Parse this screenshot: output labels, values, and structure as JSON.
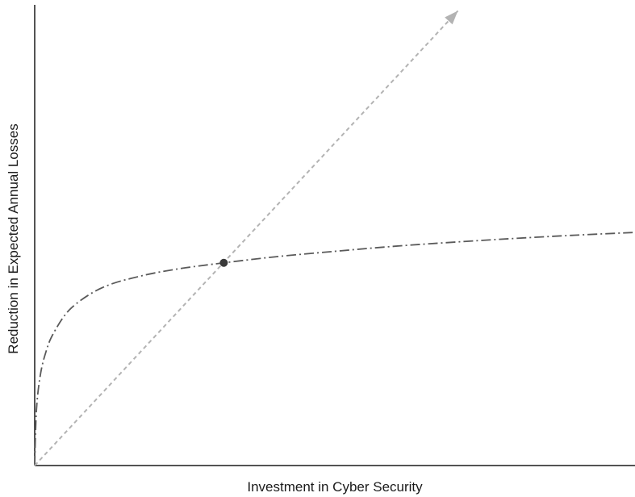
{
  "chart_data": {
    "type": "line",
    "title": "",
    "xlabel": "Investment in Cyber Security",
    "ylabel": "Reduction in Expected Annual Losses",
    "xlim": [
      0,
      100
    ],
    "ylim": [
      0,
      100
    ],
    "ticks_shown": false,
    "grid": false,
    "legend": "none",
    "series": [
      {
        "style": "dash-dot",
        "color": "#5a5a5a",
        "x": [
          0,
          0.3,
          1,
          2,
          3,
          5,
          7,
          10,
          13,
          16,
          20,
          25,
          31.5,
          40,
          50,
          60,
          70,
          80,
          90,
          100
        ],
        "y": [
          0,
          12.2,
          20.1,
          25.2,
          28.4,
          32.6,
          35.2,
          37.8,
          39.5,
          40.6,
          41.8,
          42.9,
          44.0,
          45.3,
          46.5,
          47.6,
          48.5,
          49.3,
          50.0,
          50.6
        ]
      },
      {
        "style": "dashed",
        "color": "#b3b3b3",
        "arrow": true,
        "x": [
          0,
          70.5
        ],
        "y": [
          0,
          98.7
        ]
      }
    ],
    "annotations": [
      {
        "type": "point",
        "x": 31.5,
        "y": 44.0,
        "color": "#3a3a3a"
      }
    ]
  }
}
